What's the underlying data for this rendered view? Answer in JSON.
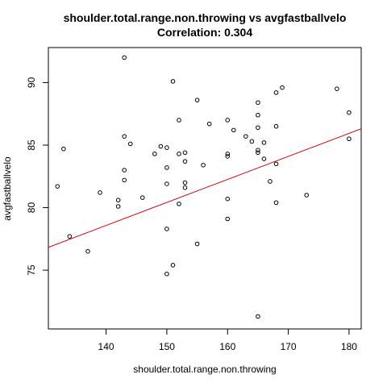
{
  "chart_data": {
    "type": "scatter",
    "title": "shoulder.total.range.non.throwing vs avgfastballvelo",
    "subtitle": "Correlation: 0.304",
    "xlabel": "shoulder.total.range.non.throwing",
    "ylabel": "avgfastballvelo",
    "xlim": [
      130.5,
      182
    ],
    "ylim": [
      70.3,
      92.8
    ],
    "xticks": [
      140,
      150,
      160,
      170,
      180
    ],
    "yticks": [
      75,
      80,
      85,
      90
    ],
    "grid": false,
    "point_color": "#000000",
    "line_color": "#cc0000",
    "regression": {
      "intercept": 52.8,
      "slope": 0.1841
    },
    "points": [
      {
        "x": 132,
        "y": 81.7
      },
      {
        "x": 133,
        "y": 84.7
      },
      {
        "x": 134,
        "y": 77.7
      },
      {
        "x": 137,
        "y": 76.5
      },
      {
        "x": 139,
        "y": 81.2
      },
      {
        "x": 142,
        "y": 80.6
      },
      {
        "x": 142,
        "y": 80.1
      },
      {
        "x": 143,
        "y": 92.0
      },
      {
        "x": 143,
        "y": 85.7
      },
      {
        "x": 143,
        "y": 83.0
      },
      {
        "x": 143,
        "y": 82.2
      },
      {
        "x": 144,
        "y": 85.1
      },
      {
        "x": 146,
        "y": 80.8
      },
      {
        "x": 148,
        "y": 84.3
      },
      {
        "x": 149,
        "y": 84.9
      },
      {
        "x": 150,
        "y": 84.8
      },
      {
        "x": 150,
        "y": 83.2
      },
      {
        "x": 150,
        "y": 81.9
      },
      {
        "x": 150,
        "y": 78.3
      },
      {
        "x": 150,
        "y": 74.7
      },
      {
        "x": 151,
        "y": 90.1
      },
      {
        "x": 151,
        "y": 75.4
      },
      {
        "x": 152,
        "y": 87.0
      },
      {
        "x": 152,
        "y": 84.3
      },
      {
        "x": 152,
        "y": 80.3
      },
      {
        "x": 153,
        "y": 84.4
      },
      {
        "x": 153,
        "y": 83.7
      },
      {
        "x": 153,
        "y": 82.0
      },
      {
        "x": 153,
        "y": 81.6
      },
      {
        "x": 155,
        "y": 88.6
      },
      {
        "x": 155,
        "y": 77.1
      },
      {
        "x": 156,
        "y": 83.4
      },
      {
        "x": 157,
        "y": 86.7
      },
      {
        "x": 160,
        "y": 87.0
      },
      {
        "x": 160,
        "y": 84.3
      },
      {
        "x": 160,
        "y": 84.1
      },
      {
        "x": 160,
        "y": 80.7
      },
      {
        "x": 160,
        "y": 79.1
      },
      {
        "x": 161,
        "y": 86.2
      },
      {
        "x": 163,
        "y": 85.7
      },
      {
        "x": 164,
        "y": 85.3
      },
      {
        "x": 165,
        "y": 88.4
      },
      {
        "x": 165,
        "y": 87.4
      },
      {
        "x": 165,
        "y": 86.4
      },
      {
        "x": 165,
        "y": 84.6
      },
      {
        "x": 165,
        "y": 84.4
      },
      {
        "x": 165,
        "y": 71.3
      },
      {
        "x": 166,
        "y": 85.2
      },
      {
        "x": 166,
        "y": 83.9
      },
      {
        "x": 167,
        "y": 82.1
      },
      {
        "x": 168,
        "y": 89.2
      },
      {
        "x": 168,
        "y": 86.5
      },
      {
        "x": 168,
        "y": 83.5
      },
      {
        "x": 168,
        "y": 80.4
      },
      {
        "x": 169,
        "y": 89.6
      },
      {
        "x": 173,
        "y": 81.0
      },
      {
        "x": 178,
        "y": 89.5
      },
      {
        "x": 180,
        "y": 87.6
      },
      {
        "x": 180,
        "y": 85.5
      }
    ]
  }
}
